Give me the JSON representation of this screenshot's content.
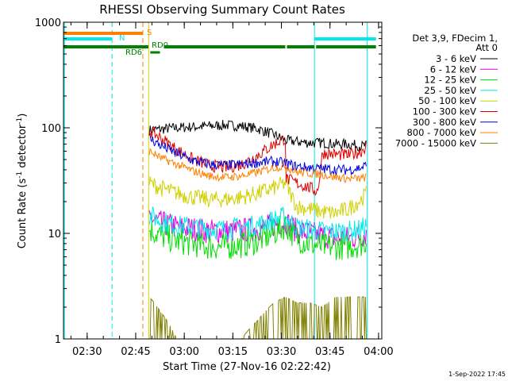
{
  "chart_data": {
    "type": "line",
    "title": "RHESSI Observing Summary Count Rates",
    "xlabel": "Start Time (27-Nov-16 02:22:42)",
    "ylabel": "Count Rate (s",
    "ylabel_sup": "-1",
    "ylabel_tail": " detector",
    "ylabel_tail_sup": "-1",
    "ylabel_end": ")",
    "y_scale": "log",
    "ylim": [
      1,
      1000
    ],
    "y_ticks": [
      {
        "value": 1,
        "label": "1"
      },
      {
        "value": 10,
        "label": "10"
      },
      {
        "value": 100,
        "label": "100"
      },
      {
        "value": 1000,
        "label": "1000"
      }
    ],
    "xlim_minutes": [
      0,
      98.3
    ],
    "x_ticks": [
      {
        "minutes": 7.3,
        "label": "02:30"
      },
      {
        "minutes": 22.3,
        "label": "02:45"
      },
      {
        "minutes": 37.3,
        "label": "03:00"
      },
      {
        "minutes": 52.3,
        "label": "03:15"
      },
      {
        "minutes": 67.3,
        "label": "03:30"
      },
      {
        "minutes": 82.3,
        "label": "03:45"
      },
      {
        "minutes": 97.3,
        "label": "04:00"
      }
    ],
    "legend_header": [
      "Det 3,9, FDecim 1,",
      "Att 0"
    ],
    "legend_position": "right",
    "series": [
      {
        "name": "3 - 6 keV",
        "color": "#000000",
        "x": [
          26.5,
          30,
          35,
          40,
          45,
          50,
          55,
          60,
          65,
          68.5,
          72,
          76,
          80,
          84,
          88,
          92,
          93.5
        ],
        "values": [
          95,
          97,
          100,
          102,
          104,
          106,
          104,
          98,
          86,
          76,
          74,
          72,
          72,
          70,
          70,
          67,
          68
        ]
      },
      {
        "name": "6 - 12 keV",
        "color": "#e000e0",
        "x": [
          26.5,
          30,
          35,
          40,
          45,
          50,
          55,
          60,
          65,
          68.5,
          72,
          76,
          80,
          84,
          88,
          92,
          93.5
        ],
        "values": [
          14,
          12.5,
          11.5,
          11,
          10.5,
          10.5,
          10.7,
          11,
          12,
          13,
          10.5,
          10,
          9.5,
          9,
          9,
          9.5,
          10
        ]
      },
      {
        "name": "12 - 25 keV",
        "color": "#00e000",
        "x": [
          26.5,
          30,
          35,
          40,
          45,
          50,
          55,
          60,
          65,
          68.5,
          72,
          76,
          80,
          84,
          88,
          92,
          93.5
        ],
        "values": [
          11,
          9.5,
          8.5,
          8,
          7.5,
          7.5,
          7.8,
          8.5,
          10,
          12,
          9,
          8,
          7.5,
          7.5,
          7.5,
          8,
          8.5
        ]
      },
      {
        "name": "25 - 50 keV",
        "color": "#00e8e8",
        "x": [
          26.5,
          30,
          35,
          40,
          45,
          50,
          55,
          60,
          65,
          68.5,
          72,
          76,
          80,
          84,
          88,
          92,
          93.5
        ],
        "values": [
          15,
          13,
          12,
          11.5,
          11,
          11,
          11.5,
          12,
          13.5,
          14.5,
          11.5,
          11,
          10.5,
          10.5,
          10.5,
          11,
          12
        ]
      },
      {
        "name": "50 - 100 keV",
        "color": "#d0d000",
        "x": [
          26.5,
          30,
          35,
          40,
          45,
          50,
          55,
          60,
          65,
          68.5,
          72,
          76,
          80,
          84,
          88,
          92,
          93.5
        ],
        "values": [
          30,
          27,
          24,
          22,
          21,
          21,
          22,
          24,
          27,
          30,
          18,
          17,
          16,
          15.5,
          17,
          21,
          24
        ]
      },
      {
        "name": "100 - 300 keV",
        "color": "#e00000",
        "x": [
          26.5,
          30,
          35,
          40,
          45,
          50,
          55,
          60,
          65,
          68.5,
          68.6,
          72,
          76,
          78.5,
          80,
          84,
          88,
          92,
          93.5
        ],
        "values": [
          95,
          80,
          62,
          50,
          44,
          42,
          45,
          55,
          70,
          80,
          33,
          30,
          27,
          25,
          58,
          56,
          55,
          60,
          68
        ]
      },
      {
        "name": "300 - 800 keV",
        "color": "#0000e0",
        "x": [
          26.5,
          30,
          35,
          40,
          45,
          50,
          55,
          60,
          65,
          68.5,
          72,
          76,
          80,
          84,
          88,
          92,
          93.5
        ],
        "values": [
          80,
          68,
          57,
          49,
          45,
          44,
          45,
          47,
          48,
          46,
          43,
          42,
          41,
          40,
          40,
          42,
          44
        ]
      },
      {
        "name": "800 - 7000 keV",
        "color": "#ff8000",
        "x": [
          26.5,
          30,
          35,
          40,
          45,
          50,
          55,
          60,
          65,
          68.5,
          72,
          76,
          80,
          84,
          88,
          92,
          93.5
        ],
        "values": [
          60,
          52,
          45,
          39,
          35,
          34,
          35,
          38,
          42,
          43,
          38,
          37,
          36,
          34,
          33,
          33,
          34
        ]
      },
      {
        "name": "7000 - 15000 keV",
        "color": "#808000",
        "x": [
          26.5,
          30,
          35,
          40,
          45,
          50,
          55,
          60,
          65,
          68.5,
          72,
          76,
          80,
          84,
          88,
          92,
          93.5
        ],
        "values": [
          2.5,
          1.8,
          1,
          1,
          1,
          1,
          1,
          1.5,
          2.2,
          2.5,
          2.2,
          2.2,
          2,
          2.5,
          2.5,
          2.5,
          2.5
        ]
      }
    ],
    "annotations": [
      {
        "text": "S",
        "color": "#ff8000"
      },
      {
        "text": "N",
        "color": "#00e8e8"
      },
      {
        "text": "RD0",
        "color": "#008000"
      },
      {
        "text": "RD6",
        "color": "#008000"
      }
    ],
    "annotation_bars": {
      "S": {
        "color": "#ff8000",
        "segments": [
          [
            0,
            24.5
          ]
        ]
      },
      "N": {
        "color": "#00e8e8",
        "segments": [
          [
            0,
            15
          ],
          [
            77.5,
            96.5
          ]
        ]
      },
      "RD0": {
        "color": "#008000",
        "segments": [
          [
            0,
            26.2
          ],
          [
            31,
            68.5
          ],
          [
            69,
            77.5
          ],
          [
            78,
            96.5
          ]
        ]
      },
      "RD6": {
        "color": "#008000",
        "segments": [
          [
            26.8,
            29.8
          ]
        ]
      }
    },
    "vertical_lines": [
      {
        "minutes": 0.3,
        "color": "#00e8e8",
        "style": "solid"
      },
      {
        "minutes": 15,
        "color": "#00e8e8",
        "style": "dashed"
      },
      {
        "minutes": 24.5,
        "color": "#ff8000",
        "style": "dashed"
      },
      {
        "minutes": 26.3,
        "color": "#d0d000",
        "style": "solid"
      },
      {
        "minutes": 77.5,
        "color": "#00e8e8",
        "style": "solid"
      },
      {
        "minutes": 93.8,
        "color": "#00e8e8",
        "style": "solid"
      }
    ],
    "footer": "1-Sep-2022 17:45"
  }
}
